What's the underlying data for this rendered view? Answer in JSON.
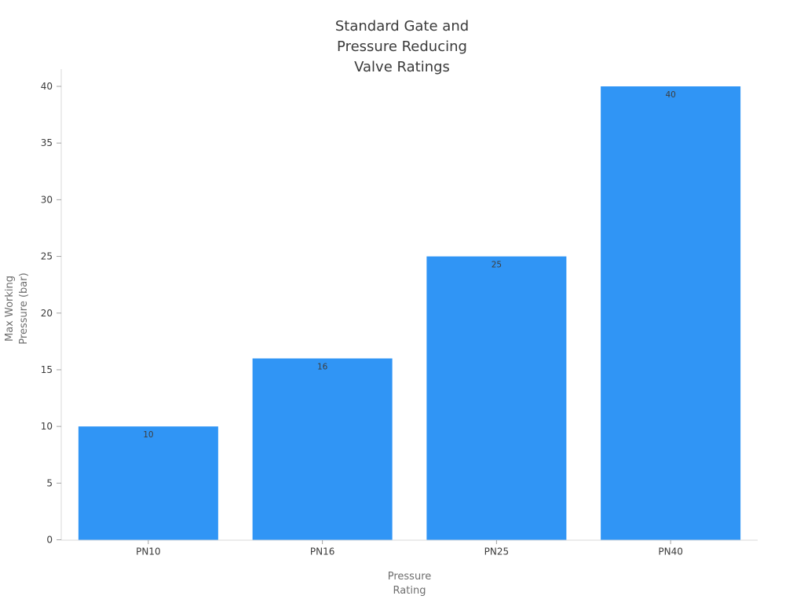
{
  "page": {
    "background": "#ffffff"
  },
  "chart_data": {
    "type": "bar",
    "title": "Standard Gate and\nPressure Reducing\nValve Ratings",
    "categories": [
      "PN10",
      "PN16",
      "PN25",
      "PN40"
    ],
    "values": [
      10,
      16,
      25,
      40
    ],
    "bar_value_labels": [
      "10",
      "16",
      "25",
      "40"
    ],
    "xlabel": "Pressure\nRating",
    "ylabel": "Max Working\nPressure (bar)",
    "ylim": [
      0,
      40
    ],
    "yticks": [
      0,
      5,
      10,
      15,
      20,
      25,
      30,
      35,
      40
    ],
    "grid": false,
    "legend_position": "none",
    "colors": {
      "bar_fill": "#3095f5",
      "bar_value_label": "#3d3d3d",
      "title": "#3a3a3a",
      "tick_label": "#3a3a3a",
      "axis_label": "#6e6e6e",
      "spine": "#d9d9d9",
      "tick_mark": "#a3a3a3",
      "background": "#ffffff"
    }
  }
}
